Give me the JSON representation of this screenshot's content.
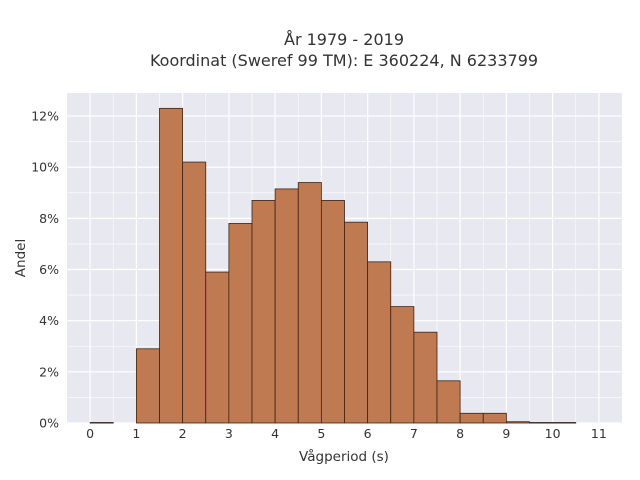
{
  "chart_data": {
    "type": "bar",
    "title_lines": [
      "År 1979 - 2019",
      "Koordinat (Sweref 99 TM): E 360224, N 6233799"
    ],
    "xlabel": "Vågperiod (s)",
    "ylabel": "Andel",
    "xlim": [
      -0.5,
      11.5
    ],
    "ylim": [
      0,
      12.9
    ],
    "x_ticks": [
      0,
      1,
      2,
      3,
      4,
      5,
      6,
      7,
      8,
      9,
      10,
      11
    ],
    "y_ticks": [
      0,
      2,
      4,
      6,
      8,
      10,
      12
    ],
    "y_tick_labels": [
      "0%",
      "2%",
      "4%",
      "6%",
      "8%",
      "10%",
      "12%"
    ],
    "bin_width": 0.5,
    "bin_starts": [
      0,
      0.5,
      1,
      1.5,
      2,
      2.5,
      3,
      3.5,
      4,
      4.5,
      5,
      5.5,
      6,
      6.5,
      7,
      7.5,
      8,
      8.5,
      9,
      9.5,
      10,
      10.5
    ],
    "values": [
      0.02,
      0,
      2.9,
      12.3,
      10.2,
      5.9,
      7.8,
      8.7,
      9.15,
      9.4,
      8.7,
      7.85,
      6.3,
      4.55,
      3.55,
      1.65,
      0.38,
      0.38,
      0.05,
      0.02,
      0.02,
      0
    ],
    "grid": true,
    "bar_color": "#c07a52",
    "bar_edge_color": "#3a2418",
    "background_color": "#e8e8f0"
  }
}
